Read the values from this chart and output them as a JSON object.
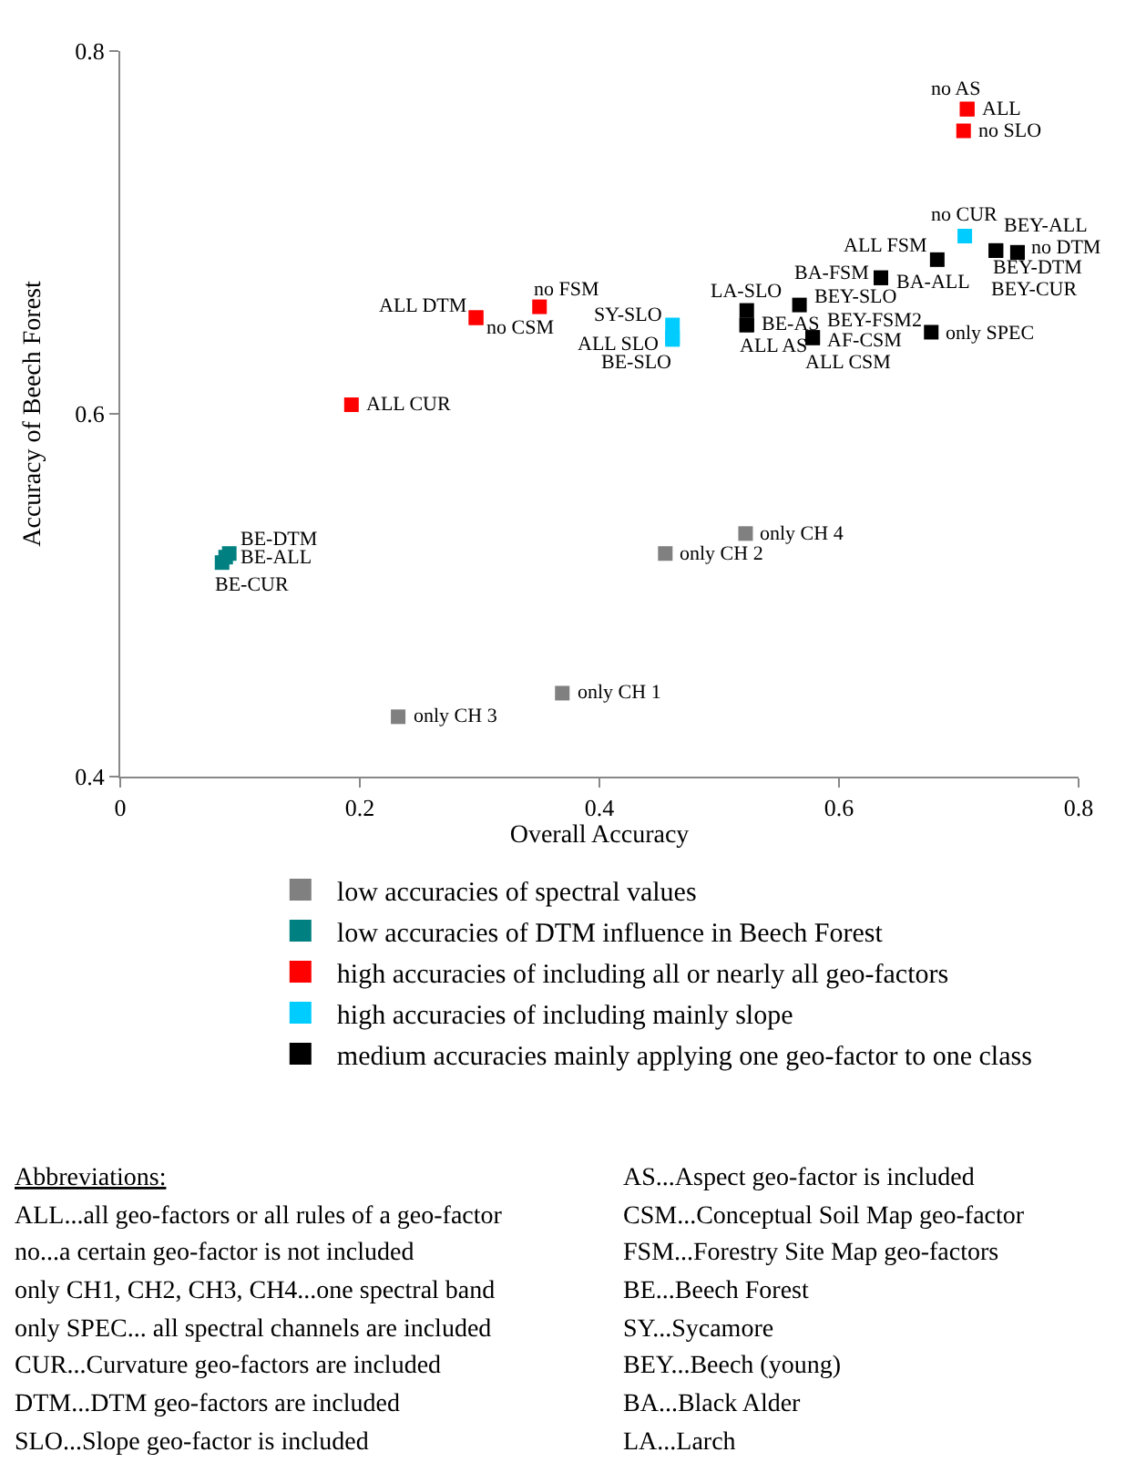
{
  "chart_data": {
    "type": "scatter",
    "xlabel": "Overall Accuracy",
    "ylabel": "Accuracy of Beech Forest",
    "xlim": [
      0,
      0.8
    ],
    "xticks": [
      0,
      0.2,
      0.4,
      0.6,
      0.8
    ],
    "ylim": [
      0.4,
      0.8
    ],
    "yticks": [
      0.4,
      0.6,
      0.8
    ],
    "grid": false,
    "legend": "bottom",
    "marker": "square",
    "series": [
      {
        "name": "low accuracies of spectral values",
        "color": "#808080",
        "x": [
          0.232,
          0.369,
          0.455,
          0.522
        ],
        "values": [
          0.433,
          0.446,
          0.523,
          0.534
        ],
        "value_labels": [
          "only CH 3",
          "only CH 1",
          "only CH 2",
          "only CH 4"
        ]
      },
      {
        "name": "low accuracies of DTM influence in Beech Forest",
        "color": "#008080",
        "x": [
          0.091,
          0.088,
          0.085
        ],
        "values": [
          0.523,
          0.521,
          0.518
        ],
        "value_labels": [
          "BE-DTM",
          "BE-ALL",
          "BE-CUR"
        ]
      },
      {
        "name": "high accuracies of including all or nearly all geo-factors",
        "color": "#ff0000",
        "x": [
          0.193,
          0.297,
          0.297,
          0.35,
          0.707,
          0.707,
          0.704
        ],
        "values": [
          0.605,
          0.653,
          0.653,
          0.659,
          0.768,
          0.768,
          0.756
        ],
        "value_labels": [
          "ALL CUR",
          "ALL DTM",
          "no CSM",
          "no FSM",
          "no AS",
          "ALL",
          "no SLO"
        ]
      },
      {
        "name": "high accuracies of including mainly slope",
        "color": "#00ccff",
        "x": [
          0.705,
          0.461,
          0.461,
          0.461
        ],
        "values": [
          0.698,
          0.649,
          0.642,
          0.641
        ],
        "value_labels": [
          "no CUR",
          "SY-SLO",
          "ALL SLO",
          "BE-SLO"
        ]
      },
      {
        "name": "medium accuracies mainly applying one geo-factor to one class",
        "color": "#000000",
        "x": [
          0.523,
          0.523,
          0.523,
          0.567,
          0.578,
          0.578,
          0.578,
          0.635,
          0.635,
          0.682,
          0.677,
          0.731,
          0.731,
          0.749,
          0.749
        ],
        "values": [
          0.657,
          0.649,
          0.649,
          0.66,
          0.642,
          0.642,
          0.642,
          0.675,
          0.675,
          0.685,
          0.645,
          0.69,
          0.69,
          0.689,
          0.689
        ],
        "value_labels": [
          "LA-SLO",
          "BE-AS",
          "ALL AS",
          "BEY-SLO",
          "BEY-FSM2",
          "AF-CSM",
          "ALL CSM",
          "BA-FSM",
          "BA-ALL",
          "ALL FSM",
          "only SPEC",
          "BEY-ALL",
          "BEY-DTM",
          "no DTM",
          "BEY-CUR"
        ]
      }
    ],
    "annotations": [
      "Abbreviations:",
      "ALL...all geo-factors or all rules of a geo-factor",
      "no...a certain geo-factor is not included",
      "only CH1, CH2, CH3, CH4...one spectral band",
      "only SPEC... all spectral channels are included",
      "CUR...Curvature geo-factors are included",
      "DTM...DTM geo-factors are included",
      "SLO...Slope geo-factor is included",
      "AS...Aspect geo-factor is included",
      "CSM...Conceptual Soil Map geo-factor",
      "FSM...Forestry Site Map geo-factors",
      "BE...Beech Forest",
      "SY...Sycamore",
      "BEY...Beech (young)",
      "BA...Black Alder",
      "LA...Larch"
    ]
  }
}
